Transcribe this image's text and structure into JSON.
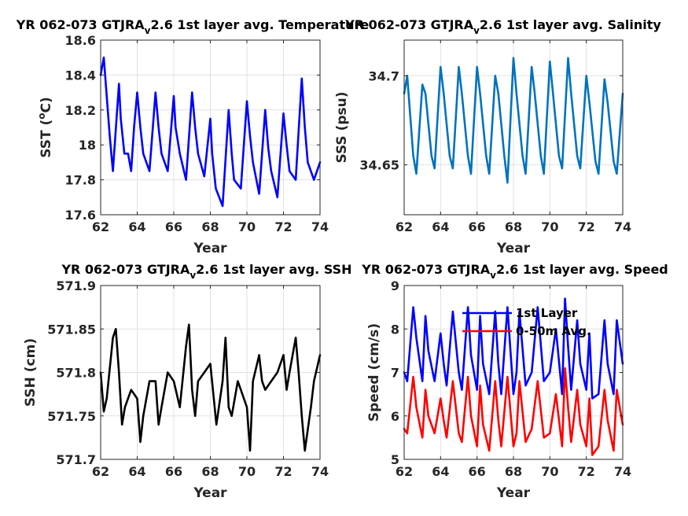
{
  "chart_data": [
    {
      "type": "line",
      "title_main": "YR 062-073 GTJRA",
      "title_sub": "v",
      "title_rest": "2.6 1st layer avg. Temperature",
      "xlabel": "Year",
      "ylabel_main": "SST (",
      "ylabel_sup": "o",
      "ylabel_rest": "C)",
      "xlim": [
        62,
        74
      ],
      "ylim": [
        17.6,
        18.6
      ],
      "xticks": [
        "62",
        "64",
        "66",
        "68",
        "70",
        "72",
        "74"
      ],
      "yticks": [
        "17.6",
        "17.8",
        "18",
        "18.2",
        "18.4",
        "18.6"
      ],
      "ytick_values": [
        17.6,
        17.8,
        18.0,
        18.2,
        18.4,
        18.6
      ],
      "series": [
        {
          "color": "#0000ff",
          "x": [
            62.0,
            62.17,
            62.5,
            62.67,
            63.0,
            63.1,
            63.3,
            63.5,
            63.67,
            63.83,
            64.0,
            64.17,
            64.33,
            64.67,
            65.0,
            65.17,
            65.33,
            65.67,
            66.0,
            66.1,
            66.33,
            66.67,
            67.0,
            67.17,
            67.33,
            67.67,
            68.0,
            68.1,
            68.3,
            68.67,
            69.0,
            69.17,
            69.3,
            69.67,
            70.0,
            70.17,
            70.33,
            70.67,
            71.0,
            71.17,
            71.33,
            71.67,
            72.0,
            72.17,
            72.33,
            72.67,
            73.0,
            73.17,
            73.33,
            73.67,
            74.0
          ],
          "y": [
            18.4,
            18.5,
            18.05,
            17.85,
            18.35,
            18.15,
            17.95,
            17.95,
            17.85,
            18.1,
            18.3,
            18.1,
            17.95,
            17.85,
            18.3,
            18.1,
            17.95,
            17.85,
            18.28,
            18.1,
            17.95,
            17.8,
            18.3,
            18.1,
            17.95,
            17.82,
            18.15,
            17.95,
            17.75,
            17.65,
            18.2,
            17.95,
            17.8,
            17.75,
            18.25,
            18.05,
            17.9,
            17.72,
            18.2,
            17.98,
            17.85,
            17.7,
            18.18,
            18.0,
            17.85,
            17.8,
            18.38,
            18.1,
            17.9,
            17.8,
            17.9
          ]
        }
      ]
    },
    {
      "type": "line",
      "title_main": "YR 062-073 GTJRA",
      "title_sub": "v",
      "title_rest": "2.6 1st layer avg. Salinity",
      "xlabel": "Year",
      "ylabel_main": "SSS (psu)",
      "xlim": [
        62,
        74
      ],
      "ylim": [
        34.622,
        34.72
      ],
      "xticks": [
        "62",
        "64",
        "66",
        "68",
        "70",
        "72",
        "74"
      ],
      "yticks": [
        "34.65",
        "34.7"
      ],
      "ytick_values": [
        34.65,
        34.7
      ],
      "series": [
        {
          "color": "#0072bd",
          "x": [
            62.0,
            62.17,
            62.5,
            62.67,
            63.0,
            63.17,
            63.5,
            63.67,
            64.0,
            64.17,
            64.5,
            64.67,
            65.0,
            65.17,
            65.5,
            65.67,
            66.0,
            66.17,
            66.5,
            66.67,
            67.0,
            67.17,
            67.5,
            67.67,
            68.0,
            68.17,
            68.5,
            68.67,
            69.0,
            69.17,
            69.5,
            69.67,
            70.0,
            70.17,
            70.5,
            70.67,
            71.0,
            71.17,
            71.5,
            71.67,
            72.0,
            72.17,
            72.5,
            72.67,
            73.0,
            73.17,
            73.5,
            73.67,
            74.0
          ],
          "y": [
            34.69,
            34.7,
            34.655,
            34.645,
            34.695,
            34.69,
            34.655,
            34.648,
            34.705,
            34.69,
            34.655,
            34.648,
            34.705,
            34.69,
            34.655,
            34.645,
            34.705,
            34.69,
            34.655,
            34.645,
            34.7,
            34.69,
            34.655,
            34.64,
            34.71,
            34.69,
            34.655,
            34.645,
            34.705,
            34.69,
            34.655,
            34.645,
            34.708,
            34.69,
            34.655,
            34.648,
            34.71,
            34.69,
            34.655,
            34.648,
            34.7,
            34.685,
            34.652,
            34.645,
            34.698,
            34.685,
            34.652,
            34.645,
            34.69
          ]
        }
      ]
    },
    {
      "type": "line",
      "title_main": "YR 062-073 GTJRA",
      "title_sub": "v",
      "title_rest": "2.6 1st layer avg. SSH",
      "xlabel": "Year",
      "ylabel_main": "SSH (cm)",
      "xlim": [
        62,
        74
      ],
      "ylim": [
        571.7,
        571.9
      ],
      "xticks": [
        "62",
        "64",
        "66",
        "68",
        "70",
        "72",
        "74"
      ],
      "yticks": [
        "571.7",
        "571.75",
        "571.8",
        "571.85",
        "571.9"
      ],
      "ytick_values": [
        571.7,
        571.75,
        571.8,
        571.85,
        571.9
      ],
      "series": [
        {
          "color": "#000000",
          "x": [
            62.0,
            62.17,
            62.33,
            62.67,
            62.83,
            63.0,
            63.17,
            63.33,
            63.67,
            64.0,
            64.17,
            64.33,
            64.67,
            65.0,
            65.17,
            65.33,
            65.67,
            66.0,
            66.33,
            66.67,
            66.83,
            67.0,
            67.17,
            67.33,
            67.67,
            68.0,
            68.33,
            68.67,
            68.83,
            69.0,
            69.17,
            69.5,
            69.67,
            70.0,
            70.17,
            70.33,
            70.67,
            70.83,
            71.0,
            71.33,
            71.67,
            72.0,
            72.17,
            72.33,
            72.67,
            72.83,
            73.0,
            73.17,
            73.5,
            73.67,
            74.0
          ],
          "y": [
            571.8,
            571.755,
            571.77,
            571.84,
            571.85,
            571.8,
            571.74,
            571.76,
            571.78,
            571.77,
            571.72,
            571.75,
            571.79,
            571.79,
            571.74,
            571.76,
            571.8,
            571.79,
            571.76,
            571.83,
            571.855,
            571.78,
            571.75,
            571.79,
            571.8,
            571.81,
            571.74,
            571.79,
            571.84,
            571.76,
            571.75,
            571.79,
            571.78,
            571.76,
            571.71,
            571.79,
            571.82,
            571.79,
            571.78,
            571.79,
            571.8,
            571.82,
            571.78,
            571.8,
            571.84,
            571.8,
            571.75,
            571.71,
            571.76,
            571.79,
            571.82
          ]
        }
      ]
    },
    {
      "type": "line",
      "title_main": "YR 062-073 GTJRA",
      "title_sub": "v",
      "title_rest": "2.6 1st layer avg. Speed",
      "xlabel": "Year",
      "ylabel_main": "Speed (cm/s)",
      "xlim": [
        62,
        74
      ],
      "ylim": [
        5,
        9
      ],
      "xticks": [
        "62",
        "64",
        "66",
        "68",
        "70",
        "72",
        "74"
      ],
      "yticks": [
        "5",
        "6",
        "7",
        "8",
        "9"
      ],
      "ytick_values": [
        5,
        6,
        7,
        8,
        9
      ],
      "legend": [
        "1st Layer",
        "0-50m Avg."
      ],
      "legend_position": "top-center",
      "series": [
        {
          "name": "1st Layer",
          "color": "#0000ff",
          "x": [
            62.0,
            62.17,
            62.5,
            62.67,
            63.0,
            63.17,
            63.33,
            63.67,
            64.0,
            64.17,
            64.33,
            64.67,
            65.0,
            65.17,
            65.5,
            65.67,
            66.0,
            66.17,
            66.33,
            66.67,
            67.0,
            67.17,
            67.33,
            67.67,
            68.0,
            68.17,
            68.33,
            68.67,
            69.0,
            69.33,
            69.67,
            70.0,
            70.33,
            70.67,
            70.83,
            71.0,
            71.17,
            71.5,
            71.67,
            72.0,
            72.17,
            72.33,
            72.67,
            73.0,
            73.17,
            73.5,
            73.67,
            74.0
          ],
          "y": [
            7.0,
            6.8,
            8.5,
            7.8,
            6.8,
            8.3,
            7.5,
            6.8,
            7.9,
            7.2,
            6.7,
            8.4,
            7.0,
            6.6,
            8.5,
            7.4,
            6.6,
            8.3,
            7.2,
            6.5,
            8.4,
            7.2,
            6.5,
            8.5,
            6.5,
            7.0,
            8.4,
            6.7,
            7.0,
            8.5,
            6.8,
            7.0,
            8.0,
            6.5,
            8.7,
            7.6,
            6.6,
            8.2,
            7.2,
            6.6,
            7.9,
            6.4,
            6.5,
            8.2,
            7.2,
            6.5,
            8.2,
            7.2
          ]
        },
        {
          "name": "0-50m Avg.",
          "color": "#ff0000",
          "x": [
            62.0,
            62.17,
            62.5,
            62.67,
            63.0,
            63.17,
            63.33,
            63.67,
            64.0,
            64.17,
            64.33,
            64.67,
            65.0,
            65.17,
            65.5,
            65.67,
            66.0,
            66.17,
            66.33,
            66.67,
            67.0,
            67.17,
            67.33,
            67.67,
            68.0,
            68.17,
            68.33,
            68.67,
            69.0,
            69.33,
            69.67,
            70.0,
            70.33,
            70.67,
            70.83,
            71.0,
            71.17,
            71.5,
            71.67,
            72.0,
            72.17,
            72.33,
            72.67,
            73.0,
            73.17,
            73.5,
            73.67,
            74.0
          ],
          "y": [
            5.7,
            5.6,
            6.9,
            6.2,
            5.5,
            6.6,
            6.0,
            5.6,
            6.4,
            5.9,
            5.5,
            6.8,
            5.6,
            5.4,
            6.9,
            6.0,
            5.3,
            6.7,
            5.8,
            5.2,
            6.8,
            5.9,
            5.3,
            6.9,
            5.3,
            5.6,
            6.8,
            5.4,
            5.7,
            6.8,
            5.5,
            5.6,
            6.5,
            5.3,
            7.1,
            6.2,
            5.4,
            6.6,
            5.8,
            5.3,
            6.4,
            5.1,
            5.3,
            6.6,
            5.9,
            5.2,
            6.6,
            5.8
          ]
        }
      ]
    }
  ]
}
